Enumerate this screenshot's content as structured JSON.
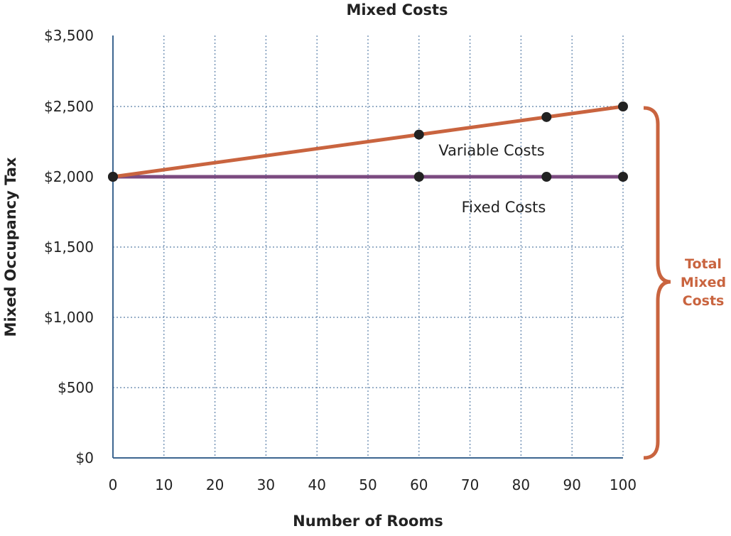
{
  "chart_data": {
    "type": "line",
    "title": "Mixed Costs",
    "xlabel": "Number of Rooms",
    "ylabel": "Mixed Occupancy Tax",
    "x_ticks": [
      "0",
      "10",
      "20",
      "30",
      "40",
      "50",
      "60",
      "70",
      "80",
      "90",
      "100"
    ],
    "y_ticks": [
      "$0",
      "$500",
      "$1,000",
      "$1,500",
      "$2,000",
      "$2,500",
      "$3,500"
    ],
    "xlim": [
      0,
      100
    ],
    "grid": true,
    "series": [
      {
        "name": "Variable Costs",
        "color": "#c9643f",
        "points": [
          [
            0,
            2000
          ],
          [
            60,
            2300
          ],
          [
            85,
            2425
          ],
          [
            100,
            2500
          ]
        ]
      },
      {
        "name": "Fixed Costs",
        "color": "#7b4a80",
        "points": [
          [
            0,
            2000
          ],
          [
            60,
            2000
          ],
          [
            85,
            2000
          ],
          [
            100,
            2000
          ]
        ]
      }
    ],
    "brace_label": [
      "Total",
      "Mixed",
      "Costs"
    ],
    "brace_color": "#c9643f"
  }
}
